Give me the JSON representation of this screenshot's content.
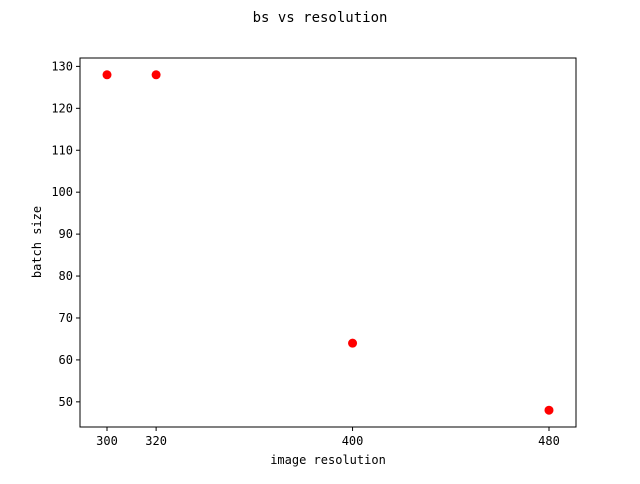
{
  "chart_data": {
    "type": "scatter",
    "title": "bs vs resolution",
    "xlabel": "image resolution",
    "ylabel": "batch size",
    "x": [
      300,
      320,
      400,
      480
    ],
    "y": [
      128,
      128,
      64,
      48
    ],
    "xticks": [
      300,
      320,
      400,
      480
    ],
    "yticks": [
      50,
      60,
      70,
      80,
      90,
      100,
      110,
      120,
      130
    ],
    "xlim": [
      289,
      491
    ],
    "ylim": [
      44,
      132
    ],
    "marker_color": "#ff0000",
    "grid": false,
    "legend": "none"
  }
}
